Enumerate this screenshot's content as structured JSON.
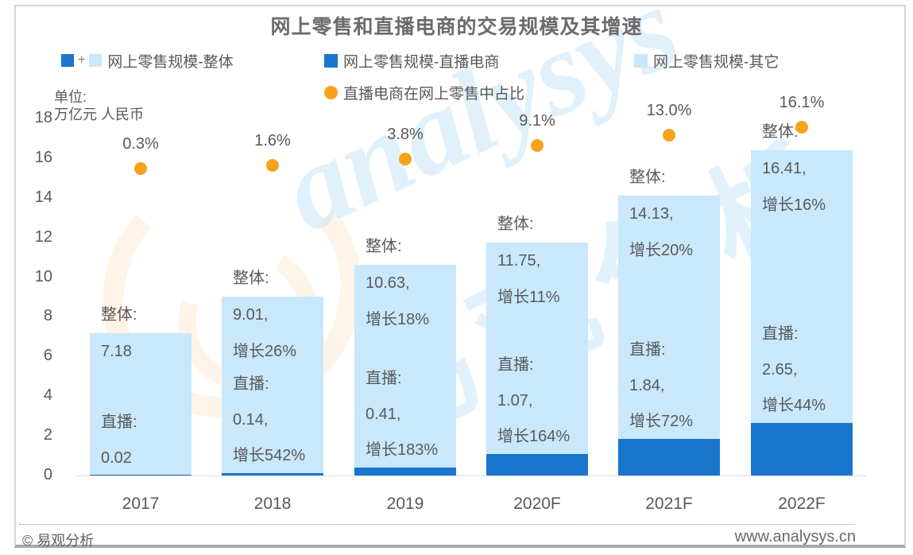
{
  "title": "网上零售和直播电商的交易规模及其增速",
  "legend": {
    "plus": "+",
    "overall": "网上零售规模-整体",
    "live": "网上零售规模-直播电商",
    "other": "网上零售规模-其它",
    "pct": "直播电商在网上零售中占比"
  },
  "unit": {
    "line1": "单位:",
    "line2": "万亿元 人民币"
  },
  "y_axis": {
    "ticks": [
      18,
      16,
      14,
      12,
      10,
      8,
      6,
      4,
      2,
      0
    ]
  },
  "footer": {
    "left": "© 易观分析",
    "right": "www.analysys.cn"
  },
  "watermark": {
    "script": "analysys",
    "cn": "易观分析"
  },
  "colors": {
    "dark_blue": "#1a75cd",
    "light_blue": "#c9e8fb",
    "orange": "#f7a21c",
    "text": "#595959"
  },
  "chart_data": {
    "type": "bar",
    "subtype": "stacked-bars-with-percentage-points",
    "title": "网上零售和直播电商的交易规模及其增速",
    "categories": [
      "2017",
      "2018",
      "2019",
      "2020F",
      "2021F",
      "2022F"
    ],
    "series": [
      {
        "name": "网上零售规模-直播电商",
        "values": [
          0.02,
          0.14,
          0.41,
          1.07,
          1.84,
          2.65
        ]
      },
      {
        "name": "网上零售规模-其它",
        "values": [
          7.16,
          8.87,
          10.22,
          10.68,
          12.29,
          13.76
        ]
      }
    ],
    "totals": [
      7.18,
      9.01,
      10.63,
      11.75,
      14.13,
      16.41
    ],
    "pct_points": {
      "name": "直播电商在网上零售中占比",
      "values": [
        0.3,
        1.6,
        3.8,
        9.1,
        13.0,
        16.1
      ],
      "labels": [
        "0.3%",
        "1.6%",
        "3.8%",
        "9.1%",
        "13.0%",
        "16.1%"
      ]
    },
    "ylabel": "万亿元 人民币",
    "ylim": [
      0,
      18
    ],
    "grid": false,
    "legend_position": "top",
    "annotations": [
      {
        "upper": [
          "整体:",
          "7.18"
        ],
        "lower": [
          "直播:",
          "0.02"
        ]
      },
      {
        "upper": [
          "整体:",
          "9.01,",
          "增长26%"
        ],
        "lower": [
          "直播:",
          "0.14,",
          "增长542%"
        ]
      },
      {
        "upper": [
          "整体:",
          "10.63,",
          "增长18%"
        ],
        "lower": [
          "直播:",
          "0.41,",
          "增长183%"
        ]
      },
      {
        "upper": [
          "整体:",
          "11.75,",
          "增长11%"
        ],
        "lower": [
          "直播:",
          "1.07,",
          "增长164%"
        ]
      },
      {
        "upper": [
          "整体:",
          "14.13,",
          "增长20%"
        ],
        "lower": [
          "直播:",
          "1.84,",
          "增长72%"
        ]
      },
      {
        "upper": [
          "整体:",
          "16.41,",
          "增长16%"
        ],
        "lower": [
          "直播:",
          "2.65,",
          "增长44%"
        ]
      }
    ]
  }
}
